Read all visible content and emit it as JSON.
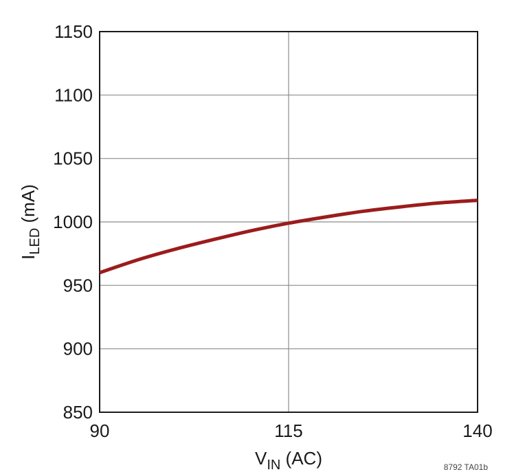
{
  "chart_data": {
    "type": "line",
    "xlabel": {
      "main": "V",
      "sub": "IN",
      "rest": " (AC)"
    },
    "ylabel": {
      "main": "I",
      "sub": "LED",
      "rest": " (mA)"
    },
    "xlim": [
      90,
      140
    ],
    "ylim": [
      850,
      1150
    ],
    "xticks": [
      90,
      115,
      140
    ],
    "yticks": [
      850,
      900,
      950,
      1000,
      1050,
      1100,
      1150
    ],
    "x_gridlines": [
      115
    ],
    "y_gridlines": [
      900,
      950,
      1000,
      1050,
      1100
    ],
    "grid": true,
    "series": [
      {
        "color": "#9b1c1c",
        "x": [
          90,
          95,
          100,
          105,
          110,
          115,
          120,
          125,
          130,
          135,
          140
        ],
        "y": [
          960,
          970,
          978.5,
          986,
          993,
          999,
          1004,
          1008.5,
          1012,
          1015,
          1017
        ]
      }
    ],
    "footnote": "8792 TA01b"
  }
}
